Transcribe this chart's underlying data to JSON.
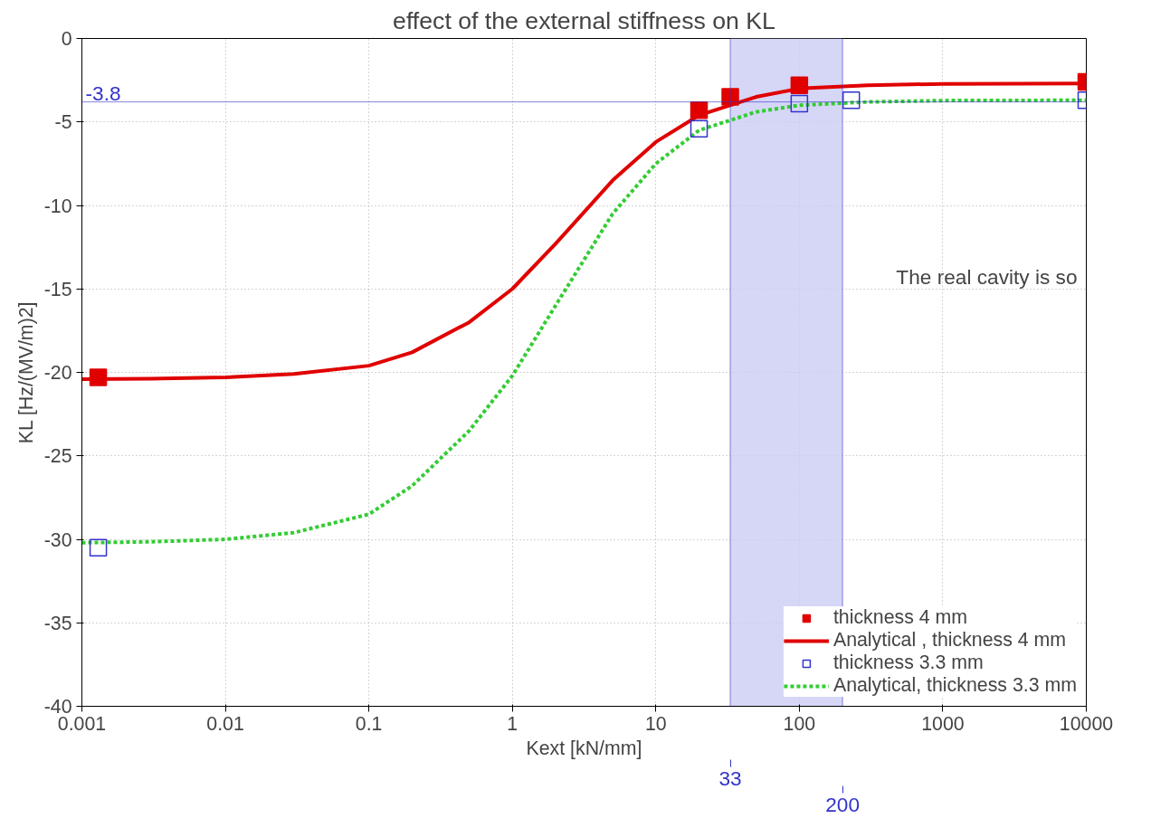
{
  "chart_data": {
    "type": "line",
    "title": "effect of the external stiffness on KL",
    "xlabel": "Kext [kN/mm]",
    "ylabel": "KL [Hz/(MV/m)2]",
    "log": "x",
    "grid": true,
    "legend": "bottom right",
    "xlim": [
      0.001,
      10000
    ],
    "xticks": [
      0.001,
      0.01,
      0.1,
      1,
      10,
      100,
      1000,
      10000
    ],
    "ylim": [
      -40,
      0
    ],
    "yticks": [
      -40,
      -35,
      -30,
      -25,
      -20,
      -15,
      -10,
      -5,
      0
    ],
    "series": [
      {
        "name": "thickness 4 mm",
        "type": "scatter",
        "marker": "square",
        "color": "#e00000",
        "x": [
          0.0013,
          20,
          33,
          100,
          10000
        ],
        "values": [
          -20.3,
          -4.3,
          -3.5,
          -2.8,
          -2.6
        ]
      },
      {
        "name": "Analytical , thickness 4 mm",
        "marker": "none",
        "line_style": "solid",
        "color": "#e00000",
        "x": [
          0.001,
          0.003,
          0.01,
          0.03,
          0.1,
          0.2,
          0.5,
          1,
          2,
          5,
          10,
          20,
          50,
          100,
          300,
          1000,
          10000
        ],
        "values": [
          -20.4,
          -20.38,
          -20.3,
          -20.1,
          -19.6,
          -18.8,
          -17.0,
          -15.0,
          -12.3,
          -8.5,
          -6.2,
          -4.6,
          -3.5,
          -3.0,
          -2.8,
          -2.72,
          -2.7
        ]
      },
      {
        "name": "thickness 3.3 mm",
        "type": "scatter",
        "marker": "square",
        "color": "#3333cc",
        "x": [
          0.0013,
          20,
          100,
          230,
          10000
        ],
        "values": [
          -30.5,
          -5.4,
          -3.9,
          -3.7,
          -3.7
        ]
      },
      {
        "name": "Analytical, thickness 3.3 mm",
        "marker": "none",
        "line_style": "dashed",
        "color": "#33cc33",
        "x": [
          0.001,
          0.003,
          0.01,
          0.03,
          0.1,
          0.2,
          0.5,
          1,
          2,
          5,
          10,
          20,
          50,
          100,
          300,
          1000,
          10000
        ],
        "values": [
          -30.2,
          -30.15,
          -30.0,
          -29.6,
          -28.5,
          -26.8,
          -23.5,
          -20.2,
          -16.0,
          -10.5,
          -7.5,
          -5.5,
          -4.4,
          -4.0,
          -3.8,
          -3.72,
          -3.7
        ]
      }
    ],
    "bands": [
      {
        "axis": "x",
        "from": 33,
        "to": 200,
        "color": "#ccccf5"
      }
    ],
    "ref_lines": [
      {
        "axis": "y",
        "value": -3.8,
        "label": "-3.8",
        "color": "#3333cc"
      },
      {
        "axis": "x",
        "value": 33,
        "label": "33",
        "color": "#3333cc"
      },
      {
        "axis": "x",
        "value": 200,
        "label": "200",
        "color": "#3333cc"
      }
    ],
    "annotations": [
      "The real cavity is so"
    ]
  }
}
